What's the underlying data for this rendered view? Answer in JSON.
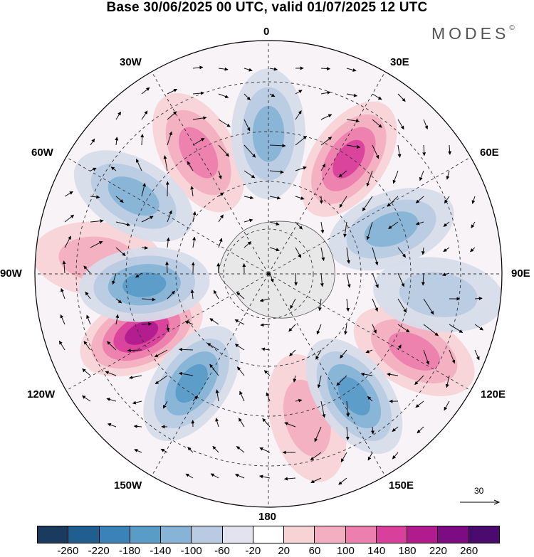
{
  "title": "Base 30/06/2025 00 UTC, valid 01/07/2025 12 UTC",
  "brand": "MODES",
  "brand_mark": "©",
  "longitude_labels": {
    "top": "0",
    "top_right_30": "30E",
    "right_60": "60E",
    "right": "90E",
    "right_120": "120E",
    "bottom_right_150": "150E",
    "bottom": "180",
    "bottom_left_150": "150W",
    "left_120": "120W",
    "left": "90W",
    "left_60": "60W",
    "top_left_30": "30W"
  },
  "reference_vector": "30",
  "colorbar": {
    "ticks": [
      "-260",
      "-220",
      "-180",
      "-140",
      "-100",
      "-60",
      "-20",
      "20",
      "60",
      "100",
      "140",
      "180",
      "220",
      "260"
    ],
    "colors": [
      "#1a3a5e",
      "#1f5e8e",
      "#3a82b8",
      "#5a9cc8",
      "#86b3d6",
      "#b9cbe2",
      "#e3e3ef",
      "#ffffff",
      "#f8d3d6",
      "#f3afc1",
      "#ec7fae",
      "#d9409c",
      "#b21b8e",
      "#7d0b83",
      "#4b0a6e"
    ]
  },
  "features": {
    "centers": [
      {
        "kind": "positive",
        "lon": -30,
        "lat": -45,
        "strength": 2
      },
      {
        "kind": "positive",
        "lon": 35,
        "lat": -45,
        "strength": 3
      },
      {
        "kind": "positive",
        "lon": -85,
        "lat": -35,
        "strength": 1
      },
      {
        "kind": "positive",
        "lon": -115,
        "lat": -45,
        "strength": 4
      },
      {
        "kind": "positive",
        "lon": 165,
        "lat": -42,
        "strength": 1
      },
      {
        "kind": "positive",
        "lon": 118,
        "lat": -37,
        "strength": 2
      },
      {
        "kind": "negative",
        "lon": 0,
        "lat": -45,
        "strength": 2
      },
      {
        "kind": "negative",
        "lon": -60,
        "lat": -40,
        "strength": 2
      },
      {
        "kind": "negative",
        "lon": -95,
        "lat": -50,
        "strength": 3
      },
      {
        "kind": "negative",
        "lon": -145,
        "lat": -47,
        "strength": 3
      },
      {
        "kind": "negative",
        "lon": 145,
        "lat": -42,
        "strength": 3
      },
      {
        "kind": "negative",
        "lon": 70,
        "lat": -48,
        "strength": 2
      },
      {
        "kind": "negative",
        "lon": 97,
        "lat": -35,
        "strength": 1
      }
    ]
  }
}
